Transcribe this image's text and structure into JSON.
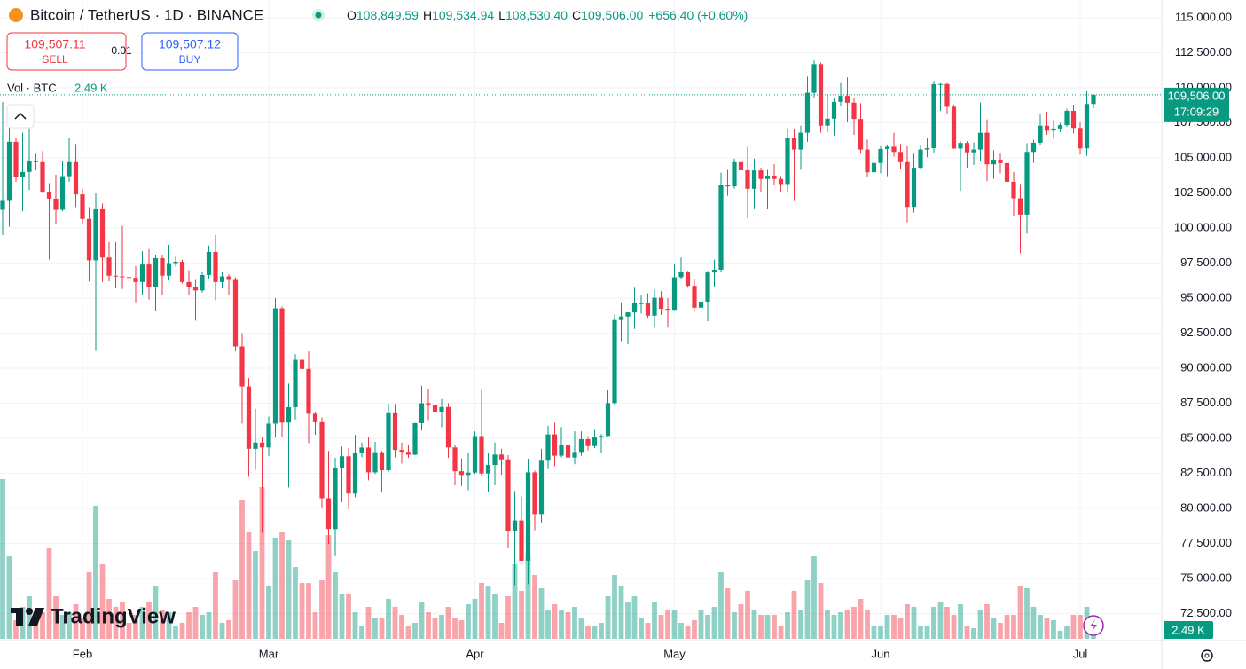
{
  "header": {
    "symbol": "Bitcoin / TetherUS · 1D · BINANCE",
    "o": "O",
    "open": "108,849.59",
    "h": "H",
    "high": "109,534.94",
    "l": "L",
    "low": "108,530.40",
    "c": "C",
    "close": "109,506.00",
    "change": "+656.40 (+0.60%)"
  },
  "trade": {
    "sell_price": "109,507.11",
    "sell": "SELL",
    "spread": "0.01",
    "buy_price": "109,507.12",
    "buy": "BUY"
  },
  "logo": "TradingView",
  "chart_data": {
    "type": "candlestick",
    "up_color": "#089981",
    "down_color": "#f23645",
    "grid": true,
    "ylim": [
      70570,
      116270
    ],
    "yticks": [
      {
        "value": 72500,
        "label": "72,500.00"
      },
      {
        "value": 75000,
        "label": "75,000.00"
      },
      {
        "value": 77500,
        "label": "77,500.00"
      },
      {
        "value": 80000,
        "label": "80,000.00"
      },
      {
        "value": 82500,
        "label": "82,500.00"
      },
      {
        "value": 85000,
        "label": "85,000.00"
      },
      {
        "value": 87500,
        "label": "87,500.00"
      },
      {
        "value": 90000,
        "label": "90,000.00"
      },
      {
        "value": 92500,
        "label": "92,500.00"
      },
      {
        "value": 95000,
        "label": "95,000.00"
      },
      {
        "value": 97500,
        "label": "97,500.00"
      },
      {
        "value": 100000,
        "label": "100,000.00"
      },
      {
        "value": 102500,
        "label": "102,500.00"
      },
      {
        "value": 105000,
        "label": "105,000.00"
      },
      {
        "value": 107500,
        "label": "107,500.00"
      },
      {
        "value": 110000,
        "label": "110,000.00"
      },
      {
        "value": 112500,
        "label": "112,500.00"
      },
      {
        "value": 115000,
        "label": "115,000.00"
      }
    ],
    "categories": [
      null,
      null,
      null,
      null,
      null,
      null,
      null,
      null,
      null,
      null,
      null,
      null,
      "Feb",
      null,
      null,
      null,
      null,
      null,
      null,
      null,
      null,
      null,
      null,
      null,
      null,
      null,
      null,
      null,
      null,
      null,
      null,
      null,
      null,
      null,
      null,
      null,
      null,
      null,
      null,
      null,
      "Mar",
      null,
      null,
      null,
      null,
      null,
      null,
      null,
      null,
      null,
      null,
      null,
      null,
      null,
      null,
      null,
      null,
      null,
      null,
      null,
      null,
      null,
      null,
      null,
      null,
      null,
      null,
      null,
      null,
      null,
      null,
      "Apr",
      null,
      null,
      null,
      null,
      null,
      null,
      null,
      null,
      null,
      null,
      null,
      null,
      null,
      null,
      null,
      null,
      null,
      null,
      null,
      null,
      null,
      null,
      null,
      null,
      null,
      null,
      null,
      null,
      null,
      "May",
      null,
      null,
      null,
      null,
      null,
      null,
      null,
      null,
      null,
      null,
      null,
      null,
      null,
      null,
      null,
      null,
      null,
      null,
      null,
      null,
      null,
      null,
      null,
      null,
      null,
      null,
      null,
      null,
      null,
      null,
      "Jun",
      null,
      null,
      null,
      null,
      null,
      null,
      null,
      null,
      null,
      null,
      null,
      null,
      null,
      null,
      null,
      null,
      null,
      null,
      null,
      null,
      null,
      null,
      null,
      null,
      null,
      null,
      null,
      null,
      null,
      "Jul",
      null,
      null
    ],
    "open": [
      101300,
      102000,
      106150,
      103650,
      104000,
      104800,
      104700,
      102600,
      102100,
      101300,
      103700,
      104700,
      102400,
      100650,
      97700,
      101400,
      97900,
      96600,
      96550,
      96500,
      96450,
      96150,
      97400,
      95800,
      97850,
      96600,
      97500,
      97600,
      96150,
      95800,
      95550,
      96650,
      98300,
      96150,
      96550,
      96300,
      91550,
      88700,
      84250,
      84700,
      84350,
      86050,
      94270,
      86120,
      87220,
      90600,
      89950,
      86750,
      86150,
      80730,
      78530,
      82860,
      83720,
      81060,
      83980,
      84340,
      82570,
      84010,
      82720,
      86850,
      84170,
      84040,
      83830,
      86080,
      87500,
      87390,
      86900,
      87230,
      84350,
      82650,
      82390,
      82550,
      85160,
      82490,
      83100,
      83840,
      83500,
      78370,
      79140,
      76270,
      82570,
      79600,
      83400,
      85280,
      83760,
      84540,
      83630,
      84030,
      84940,
      84450,
      85060,
      85170,
      87510,
      93440,
      93690,
      93980,
      94640,
      94640,
      93750,
      95030,
      94240,
      94170,
      96490,
      96900,
      95880,
      94320,
      94750,
      96830,
      97030,
      103060,
      102970,
      104700,
      104120,
      102800,
      104110,
      103500,
      103740,
      103500,
      103140,
      106450,
      105600,
      106800,
      109650,
      111690,
      107300,
      107800,
      109000,
      109430,
      108940,
      107780,
      105600,
      103980,
      104640,
      105640,
      105800,
      105430,
      104700,
      101510,
      104300,
      105600,
      105700,
      110260,
      110270,
      108650,
      105670,
      106070,
      105400,
      105600,
      106800,
      104550,
      104880,
      104630,
      103300,
      102120,
      100960,
      105430,
      106080,
      107300,
      106950,
      107100,
      107340,
      108360,
      107140,
      105680,
      108849.59
    ],
    "high": [
      109000,
      107200,
      106400,
      106800,
      107100,
      105300,
      105500,
      103200,
      103800,
      104800,
      106450,
      106000,
      102800,
      101500,
      102500,
      101750,
      99000,
      99000,
      100150,
      96900,
      97300,
      98350,
      98500,
      98100,
      98100,
      98800,
      97950,
      97750,
      97000,
      96300,
      96900,
      98750,
      99500,
      96900,
      96700,
      96500,
      92500,
      89300,
      87100,
      85100,
      86550,
      95000,
      94400,
      88900,
      91000,
      92800,
      91200,
      86900,
      86500,
      84100,
      83600,
      84400,
      84300,
      85250,
      84700,
      85100,
      84750,
      84100,
      87450,
      87450,
      84700,
      84550,
      86100,
      88750,
      88550,
      88300,
      87800,
      87500,
      84550,
      83550,
      83950,
      85500,
      88500,
      83950,
      84700,
      84250,
      83800,
      81250,
      80850,
      83550,
      82700,
      84250,
      85900,
      86100,
      85800,
      86500,
      85500,
      85500,
      85150,
      85600,
      85300,
      88450,
      93850,
      94700,
      94000,
      95750,
      95250,
      95350,
      95600,
      95500,
      95000,
      97450,
      97900,
      96950,
      96350,
      95200,
      96950,
      97750,
      103950,
      104150,
      104950,
      105000,
      105800,
      104950,
      104300,
      104150,
      104550,
      103700,
      107100,
      107100,
      107300,
      110800,
      111950,
      111800,
      109500,
      109300,
      110400,
      110750,
      109300,
      108900,
      106300,
      104900,
      105900,
      105950,
      106800,
      106000,
      105900,
      105300,
      105950,
      106450,
      110500,
      110400,
      110400,
      108800,
      106200,
      106200,
      106100,
      108950,
      107750,
      105550,
      105300,
      106550,
      104000,
      103150,
      106050,
      106300,
      108100,
      108300,
      107700,
      107500,
      108500,
      108800,
      107550,
      109750,
      109534.94
    ],
    "low": [
      99500,
      100100,
      103300,
      101200,
      102700,
      104100,
      102500,
      97750,
      100300,
      101200,
      103300,
      101500,
      100300,
      96200,
      91230,
      96150,
      96200,
      95700,
      95650,
      95700,
      94700,
      95250,
      94900,
      94100,
      95250,
      96250,
      97250,
      96050,
      95200,
      93400,
      95400,
      96400,
      94850,
      95700,
      95250,
      91200,
      86050,
      82250,
      82750,
      78250,
      83750,
      85050,
      85100,
      81500,
      86350,
      87850,
      84650,
      85250,
      80000,
      77450,
      76600,
      80450,
      79950,
      80800,
      83650,
      82000,
      82450,
      81150,
      82600,
      83650,
      83200,
      83600,
      83800,
      85550,
      86300,
      85850,
      85800,
      83600,
      81650,
      81600,
      81300,
      82450,
      82300,
      81200,
      81650,
      82400,
      77150,
      74500,
      76250,
      74600,
      78450,
      78950,
      82800,
      83000,
      83650,
      83600,
      83150,
      83750,
      84150,
      84300,
      83950,
      85150,
      87350,
      91950,
      91700,
      92800,
      93900,
      93600,
      92900,
      93800,
      92900,
      94150,
      96350,
      95750,
      94150,
      93500,
      93350,
      95800,
      96900,
      102300,
      102800,
      103450,
      100700,
      101400,
      102600,
      101350,
      103050,
      102600,
      102600,
      102000,
      104150,
      106150,
      109300,
      106800,
      106850,
      106600,
      108700,
      107550,
      106650,
      105300,
      103650,
      103100,
      103900,
      103700,
      105100,
      104200,
      100400,
      101100,
      104200,
      105050,
      105350,
      108350,
      108100,
      105650,
      102650,
      104300,
      104500,
      104800,
      103350,
      103500,
      103900,
      102350,
      100850,
      98200,
      99600,
      104650,
      105950,
      106650,
      106400,
      106850,
      107200,
      106750,
      105250,
      105150,
      108530.4
    ],
    "close": [
      102000,
      106150,
      103650,
      104000,
      104800,
      104700,
      102600,
      102100,
      101300,
      103700,
      104700,
      102400,
      100650,
      97700,
      101400,
      97900,
      96600,
      96550,
      96500,
      96450,
      96150,
      97400,
      95800,
      97850,
      96600,
      97500,
      97600,
      96150,
      95800,
      95550,
      96650,
      98300,
      96150,
      96550,
      96300,
      91550,
      88700,
      84250,
      84700,
      84350,
      86050,
      94270,
      86120,
      87220,
      90600,
      89950,
      86750,
      86150,
      80730,
      78530,
      82860,
      83720,
      81060,
      83980,
      84340,
      82570,
      84010,
      82720,
      86850,
      84170,
      84040,
      83830,
      86080,
      87500,
      87390,
      86900,
      87230,
      84350,
      82650,
      82390,
      82550,
      85160,
      82490,
      83100,
      83840,
      83500,
      78370,
      79140,
      76270,
      82570,
      79600,
      83400,
      85280,
      83760,
      84540,
      83630,
      84030,
      84940,
      84450,
      85060,
      85170,
      87510,
      93440,
      93690,
      93980,
      94640,
      94640,
      93750,
      95030,
      94240,
      94170,
      96490,
      96900,
      95880,
      94320,
      94750,
      96830,
      97030,
      103060,
      102970,
      104700,
      104120,
      102800,
      104110,
      103500,
      103740,
      103500,
      103140,
      106450,
      105600,
      106800,
      109650,
      111690,
      107300,
      107800,
      109000,
      109430,
      108940,
      107780,
      105600,
      103980,
      104640,
      105640,
      105800,
      105430,
      104700,
      101510,
      104300,
      105600,
      105700,
      110260,
      110270,
      108650,
      105670,
      106070,
      105400,
      105600,
      106800,
      104550,
      104880,
      104630,
      103300,
      102120,
      100960,
      105430,
      106080,
      107300,
      106950,
      107100,
      107340,
      108360,
      107140,
      105680,
      108849.59,
      109506.0
    ],
    "last_price_label": "109,506.00",
    "countdown": "17:09:29",
    "volume": {
      "name": "Vol · BTC",
      "last_label": "2.49 K",
      "values": [
        60000,
        31000,
        7000,
        12000,
        16000,
        8000,
        10000,
        34000,
        16000,
        9000,
        10000,
        13000,
        8000,
        25000,
        50000,
        28000,
        15000,
        12000,
        14000,
        6000,
        9000,
        12000,
        14000,
        20000,
        11000,
        10000,
        5000,
        6000,
        10000,
        12000,
        9000,
        10000,
        25000,
        6000,
        7000,
        22000,
        52000,
        40000,
        33000,
        57000,
        20000,
        38000,
        40000,
        37000,
        27000,
        21000,
        21000,
        10000,
        22000,
        39000,
        25000,
        17000,
        17000,
        10000,
        5000,
        12000,
        8000,
        8000,
        15000,
        12000,
        9000,
        5000,
        6000,
        14000,
        10000,
        8000,
        9000,
        12000,
        8000,
        7000,
        13000,
        15000,
        21000,
        20000,
        17000,
        6000,
        16000,
        28000,
        18000,
        32000,
        24000,
        19000,
        11000,
        13000,
        11000,
        10000,
        12000,
        8000,
        5000,
        5000,
        6000,
        16000,
        24000,
        20000,
        14000,
        16000,
        8000,
        6000,
        14000,
        9000,
        11000,
        11000,
        6000,
        5000,
        7000,
        11000,
        9000,
        12000,
        25000,
        19000,
        10000,
        13000,
        18000,
        11000,
        9000,
        9000,
        9000,
        5000,
        10000,
        18000,
        11000,
        22000,
        31000,
        21000,
        11000,
        9000,
        10000,
        11000,
        12000,
        15000,
        11000,
        5000,
        5000,
        9000,
        9000,
        8000,
        13000,
        12000,
        5000,
        5000,
        12000,
        14000,
        12000,
        9000,
        13000,
        5000,
        4000,
        11000,
        13000,
        8000,
        6000,
        9000,
        9000,
        20000,
        19000,
        12000,
        9000,
        8000,
        7000,
        3000,
        5000,
        9000,
        9000,
        12000,
        2490
      ]
    }
  }
}
